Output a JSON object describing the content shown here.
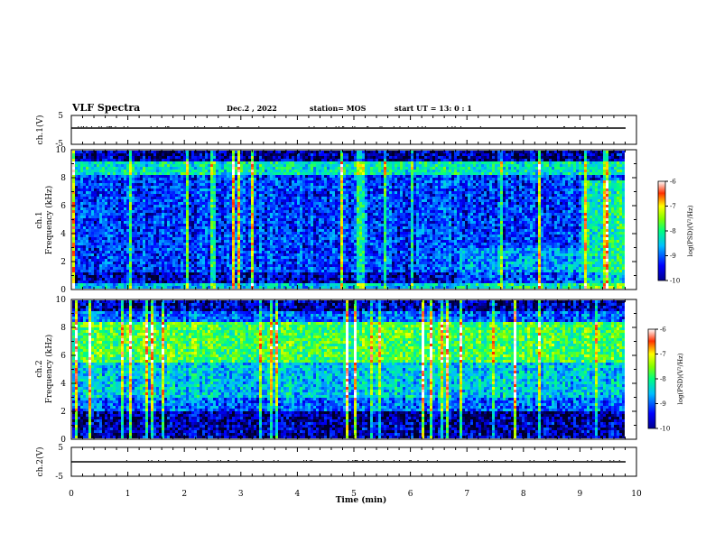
{
  "header": {
    "title": "VLF Spectra",
    "date": "Dec.2 , 2022",
    "station": "station= MOS",
    "start": "start  UT  =   13: 0  : 1"
  },
  "chart_data": [
    {
      "type": "line",
      "panel": "ch1-voltage",
      "ylabel": "ch.1(V)",
      "ylim": [
        -5,
        5
      ],
      "yticks": [
        "5",
        "-5"
      ],
      "xlim": [
        0,
        10
      ],
      "series": [
        {
          "values_description_none": true,
          "level": 0
        }
      ]
    },
    {
      "type": "heatmap",
      "panel": "ch1-spectrogram",
      "ylabel_top": "ch.1",
      "ylabel": "Frequency (kHz)",
      "ylim": [
        0,
        10
      ],
      "yticks": [
        "0",
        "2",
        "4",
        "6",
        "8",
        "10"
      ],
      "xlim": [
        0,
        10
      ],
      "colorbar": {
        "label": "log(PSD)(V²/Hz)",
        "range": [
          -10,
          -6
        ],
        "ticks": [
          "-6",
          "-7",
          "-8",
          "-9",
          "-10"
        ]
      }
    },
    {
      "type": "heatmap",
      "panel": "ch2-spectrogram",
      "ylabel_top": "ch.2",
      "ylabel": "Frequency (kHz)",
      "ylim": [
        0,
        10
      ],
      "yticks": [
        "0",
        "2",
        "4",
        "6",
        "8",
        "10"
      ],
      "xlim": [
        0,
        10
      ],
      "colorbar": {
        "label": "log(PSD)(V²/Hz)",
        "range": [
          -10,
          -6
        ],
        "ticks": [
          "-6",
          "-7",
          "-8",
          "-9",
          "-10"
        ]
      }
    },
    {
      "type": "line",
      "panel": "ch2-voltage",
      "ylabel": "ch.2(V)",
      "ylim": [
        -5,
        5
      ],
      "yticks": [
        "5",
        "-5"
      ],
      "xlim": [
        0,
        10
      ],
      "xlabel": "Time  (min)",
      "xticks": [
        "0",
        "1",
        "2",
        "3",
        "4",
        "5",
        "6",
        "7",
        "8",
        "9",
        "10"
      ]
    }
  ]
}
